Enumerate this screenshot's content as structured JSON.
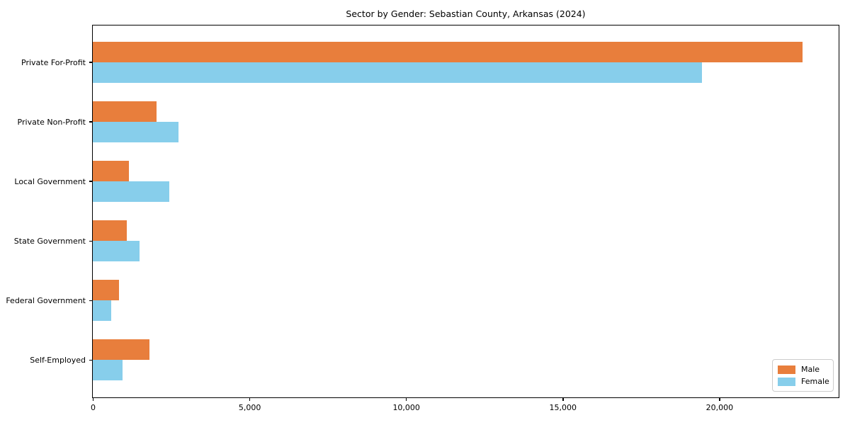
{
  "title": "Sector by Gender: Sebastian County, Arkansas (2024)",
  "chart_data": {
    "type": "bar",
    "orientation": "horizontal",
    "title": "Sector by Gender: Sebastian County, Arkansas (2024)",
    "categories": [
      "Private For-Profit",
      "Private Non-Profit",
      "Local Government",
      "State Government",
      "Federal Government",
      "Self-Employed"
    ],
    "series": [
      {
        "name": "Male",
        "color": "#E87E3C",
        "values": [
          22660,
          2030,
          1150,
          1080,
          830,
          1810
        ]
      },
      {
        "name": "Female",
        "color": "#87CEEB",
        "values": [
          19450,
          2730,
          2440,
          1490,
          590,
          950
        ]
      }
    ],
    "xlabel": "",
    "ylabel": "",
    "xlim": [
      0,
      23790
    ],
    "xticks": [
      {
        "value": 0,
        "label": "0"
      },
      {
        "value": 5000,
        "label": "5,000"
      },
      {
        "value": 10000,
        "label": "10,000"
      },
      {
        "value": 15000,
        "label": "15,000"
      },
      {
        "value": 20000,
        "label": "20,000"
      }
    ],
    "legend": {
      "position": "lower right",
      "labels": [
        "Male",
        "Female"
      ]
    },
    "grid": false,
    "colors": {
      "axis": "#000000",
      "background": "#ffffff",
      "legend_border": "#cccccc"
    }
  }
}
